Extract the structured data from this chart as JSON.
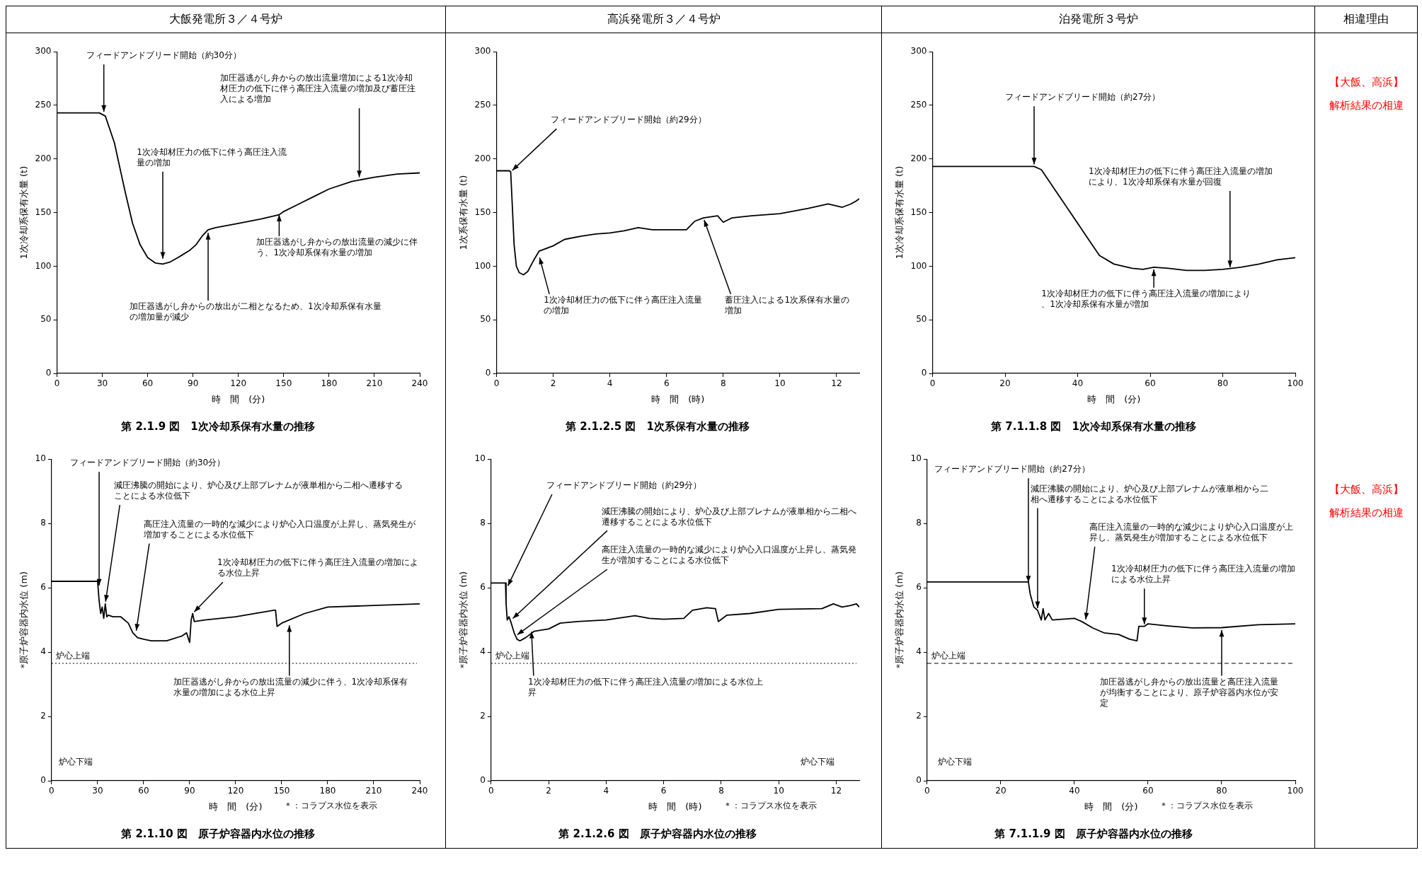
{
  "chart_data": [
    {
      "type": "other",
      "annotations": [
        "大飯発電所３／４号炉",
        "高浜発電所３／４号炉",
        "泊発電所３号炉",
        "相違理由"
      ]
    },
    {
      "type": "line",
      "title": "第 2.1.9 図　1次冷却系保有水量の推移",
      "xlabel": "時　間　(分)",
      "ylabel": "1次冷却系保有水量 (t)",
      "color": "#000000",
      "x": [
        0,
        28,
        32,
        38,
        45,
        50,
        55,
        60,
        65,
        70,
        75,
        80,
        88,
        92,
        96,
        100,
        105,
        120,
        135,
        147,
        150,
        160,
        170,
        180,
        195,
        210,
        225,
        240
      ],
      "values": [
        243,
        243,
        240,
        215,
        170,
        140,
        120,
        108,
        103,
        102,
        104,
        108,
        115,
        120,
        128,
        134,
        136,
        140,
        144,
        148,
        151,
        158,
        165,
        172,
        179,
        183,
        186,
        187
      ],
      "xlim": [
        0,
        240
      ],
      "xticks": [
        0,
        30,
        60,
        90,
        120,
        150,
        180,
        210,
        240
      ],
      "ylim": [
        0,
        300
      ],
      "yticks": [
        0,
        50,
        100,
        150,
        200,
        250,
        300
      ],
      "annotations": [
        {
          "text": "フィードアンドブリード開始（約30分）",
          "x": 31,
          "y": 242
        },
        {
          "text": "加圧器逃がし弁からの放出流量増加による1次冷却材圧力の低下に伴う高圧注入流量の増加及び蓄圧注入による増加",
          "x": 200,
          "y": 181
        },
        {
          "text": "1次冷却材圧力の低下に伴う高圧注入流量の増加",
          "x": 70,
          "y": 105
        },
        {
          "text": "加圧器逃がし弁からの放出流量の減少に伴う、1次冷却系保有水量の増加",
          "x": 147,
          "y": 150
        },
        {
          "text": "加圧器逃がし弁からの放出が二相となるため、1次冷却系保有水量の増加量が減少",
          "x": 100,
          "y": 133
        }
      ]
    },
    {
      "type": "line",
      "title": "第 2.1.2.5 図　1次系保有水量の推移",
      "xlabel": "時　間　(時)",
      "ylabel": "1次系保有水量 (t)",
      "color": "#000000",
      "x": [
        0,
        0.45,
        0.5,
        0.55,
        0.62,
        0.7,
        0.8,
        0.95,
        1.1,
        1.3,
        1.5,
        1.8,
        2,
        2.4,
        3,
        3.5,
        4,
        4.5,
        5,
        5.5,
        6,
        6.7,
        7,
        7.3,
        7.8,
        8,
        8.3,
        9,
        10,
        11,
        11.7,
        12.2,
        12.5,
        12.7,
        12.8
      ],
      "values": [
        189,
        189,
        188,
        160,
        120,
        100,
        94,
        92,
        95,
        105,
        114,
        117,
        119,
        125,
        128,
        130,
        131,
        133,
        136,
        134,
        134,
        134,
        142,
        145,
        147,
        141,
        145,
        147,
        149,
        154,
        158,
        155,
        158,
        161,
        163
      ],
      "xlim": [
        0,
        12.8
      ],
      "xticks": [
        0,
        2,
        4,
        6,
        8,
        10,
        12
      ],
      "ylim": [
        0,
        300
      ],
      "yticks": [
        0,
        50,
        100,
        150,
        200,
        250,
        300
      ],
      "annotations": [
        {
          "text": "フィードアンドブリード開始（約29分）",
          "x": 0.5,
          "y": 188
        },
        {
          "text": "1次冷却材圧力の低下に伴う高圧注入流量の増加",
          "x": 1.5,
          "y": 110
        },
        {
          "text": "蓄圧注入による1次系保有水量の増加",
          "x": 7.3,
          "y": 145
        }
      ]
    },
    {
      "type": "line",
      "title": "第 7.1.1.8 図　1次冷却系保有水量の推移",
      "xlabel": "時　間　(分)",
      "ylabel": "1次冷却系保有水量 (t)",
      "color": "#000000",
      "x": [
        0,
        28,
        30,
        33,
        37,
        42,
        46,
        50,
        55,
        58,
        61,
        65,
        70,
        75,
        80,
        85,
        90,
        95,
        100
      ],
      "values": [
        193,
        193,
        190,
        175,
        155,
        130,
        110,
        102,
        98,
        97,
        99,
        98,
        96,
        96,
        97,
        99,
        102,
        106,
        108
      ],
      "xlim": [
        0,
        100
      ],
      "xticks": [
        0,
        20,
        40,
        60,
        80,
        100
      ],
      "ylim": [
        0,
        300
      ],
      "yticks": [
        0,
        50,
        100,
        150,
        200,
        250,
        300
      ],
      "annotations": [
        {
          "text": "フィードアンドブリード開始（約27分）",
          "x": 28,
          "y": 193
        },
        {
          "text": "1次冷却材圧力の低下に伴う高圧注入流量の増加により、1次冷却系保有水量が回復",
          "x": 82,
          "y": 97
        },
        {
          "text": "1次冷却材圧力の低下に伴う高圧注入流量の増加により、1次冷却系保有水量が増加",
          "x": 61,
          "y": 99
        }
      ]
    },
    {
      "type": "other",
      "color": "#ff0000",
      "annotations": [
        "【大飯、高浜】",
        "解析結果の相違"
      ]
    },
    {
      "type": "line",
      "title": "第 2.1.10 図　原子炉容器内水位の推移",
      "xlabel": "時　間　(分)",
      "ylabel": "*原子炉容器内水位 (m)",
      "color": "#000000",
      "x": [
        0,
        30,
        31,
        32,
        33,
        34,
        35,
        36,
        37,
        40,
        45,
        50,
        53,
        56,
        60,
        65,
        75,
        85,
        88,
        90,
        91,
        92,
        93,
        100,
        120,
        145,
        146,
        147,
        150,
        165,
        180,
        210,
        240
      ],
      "values": [
        6.2,
        6.2,
        5.6,
        5.2,
        5.4,
        5.05,
        5.5,
        5.1,
        5.15,
        5.1,
        5.1,
        4.9,
        4.6,
        4.45,
        4.4,
        4.35,
        4.35,
        4.5,
        4.6,
        4.3,
        5.0,
        5.2,
        4.95,
        5.0,
        5.1,
        5.3,
        5.3,
        4.8,
        4.9,
        5.2,
        5.4,
        5.45,
        5.5
      ],
      "xlim": [
        0,
        240
      ],
      "xticks": [
        0,
        30,
        60,
        90,
        120,
        150,
        180,
        210,
        240
      ],
      "ylim": [
        0,
        10
      ],
      "yticks": [
        0,
        2,
        4,
        6,
        8,
        10
      ],
      "ref_lines": [
        {
          "axis": "y",
          "value": 3.65,
          "label": "炉心上端",
          "line_style": "dotted",
          "color": "#000000"
        }
      ],
      "annotations": [
        {
          "text": "フィードアンドブリード開始（約30分）",
          "x": 31,
          "y": 6.0
        },
        {
          "text": "減圧沸騰の開始により、炉心及び上部プレナムが液単相から二相へ遷移することによる水位低下",
          "x": 35,
          "y": 5.5
        },
        {
          "text": "高圧注入流量の一時的な減少により炉心入口温度が上昇し、蒸気発生が増加することによる水位低下",
          "x": 55,
          "y": 4.6
        },
        {
          "text": "1次冷却材圧力の低下に伴う高圧注入流量の増加による水位上昇",
          "x": 92,
          "y": 5.2
        },
        {
          "text": "加圧器逃がし弁からの放出流量の減少に伴う、1次冷却系保有水量の増加による水位上昇",
          "x": 155,
          "y": 4.9
        },
        "炉心下端",
        "＊：コラプス水位を表示"
      ]
    },
    {
      "type": "line",
      "title": "第 2.1.2.6 図　原子炉容器内水位の推移",
      "xlabel": "時　間　(時)",
      "ylabel": "*原子炉容器内水位 (m)",
      "color": "#000000",
      "x": [
        0,
        0.5,
        0.52,
        0.56,
        0.62,
        0.7,
        0.8,
        0.9,
        1,
        1.2,
        1.5,
        2,
        2.4,
        3,
        4,
        5,
        5.5,
        6,
        6.7,
        7,
        7.5,
        7.8,
        7.9,
        8.2,
        9,
        10,
        11.5,
        11.9,
        12.2,
        12.5,
        12.7,
        12.8
      ],
      "values": [
        6.15,
        6.15,
        5.5,
        5,
        5.1,
        4.9,
        4.6,
        4.4,
        4.35,
        4.45,
        4.65,
        4.72,
        4.9,
        4.95,
        5,
        5.13,
        5.05,
        5.02,
        5.05,
        5.3,
        5.38,
        5.35,
        4.95,
        5.15,
        5.2,
        5.33,
        5.35,
        5.5,
        5.4,
        5.45,
        5.5,
        5.4
      ],
      "xlim": [
        0,
        12.8
      ],
      "xticks": [
        0,
        2,
        4,
        6,
        8,
        10,
        12
      ],
      "ylim": [
        0,
        10
      ],
      "yticks": [
        0,
        2,
        4,
        6,
        8,
        10
      ],
      "ref_lines": [
        {
          "axis": "y",
          "value": 3.65,
          "label": "炉心上端",
          "line_style": "dotted",
          "color": "#000000"
        }
      ],
      "annotations": [
        {
          "text": "フィードアンドブリード開始（約29分）",
          "x": 0.55,
          "y": 6.0
        },
        {
          "text": "減圧沸騰の開始により、炉心及び上部プレナムが液単相から二相へ遷移することによる水位低下",
          "x": 0.7,
          "y": 5.0
        },
        {
          "text": "高圧注入流量の一時的な減少により炉心入口温度が上昇し、蒸気発生が増加することによる水位低下",
          "x": 0.85,
          "y": 4.5
        },
        {
          "text": "1次冷却材圧力の低下に伴う高圧注入流量の増加による水位上昇",
          "x": 1.4,
          "y": 4.7
        },
        "炉心下端",
        "＊：コラプス水位を表示"
      ]
    },
    {
      "type": "line",
      "title": "第 7.1.1.9 図　原子炉容器内水位の推移",
      "xlabel": "時　間　(分)",
      "ylabel": "*原子炉容器内水位 (m)",
      "color": "#000000",
      "x": [
        0,
        27.5,
        28,
        29,
        30,
        31,
        31.5,
        32,
        33,
        34,
        40,
        42,
        45,
        48,
        52,
        55,
        57,
        57.5,
        59,
        60,
        65,
        72,
        80,
        90,
        100
      ],
      "values": [
        6.18,
        6.18,
        5.8,
        5.4,
        5.3,
        5,
        5.35,
        5,
        5.2,
        5,
        5.05,
        4.95,
        4.75,
        4.6,
        4.55,
        4.4,
        4.35,
        4.8,
        4.8,
        4.88,
        4.82,
        4.75,
        4.76,
        4.85,
        4.88
      ],
      "xlim": [
        0,
        100
      ],
      "xticks": [
        0,
        20,
        40,
        60,
        80,
        100
      ],
      "ylim": [
        0,
        10
      ],
      "yticks": [
        0,
        2,
        4,
        6,
        8,
        10
      ],
      "ref_lines": [
        {
          "axis": "y",
          "value": 3.65,
          "label": "炉心上端",
          "line_style": "dashed",
          "color": "#000000"
        }
      ],
      "annotations": [
        {
          "text": "フィードアンドブリード開始（約27分）",
          "x": 27.5,
          "y": 6.1
        },
        {
          "text": "減圧沸騰の開始により、炉心及び上部プレナムが液単相から二相へ遷移することによる水位低下",
          "x": 30,
          "y": 5.3
        },
        {
          "text": "高圧注入流量の一時的な減少により炉心入口温度が上昇し、蒸気発生が増加することによる水位低下",
          "x": 43,
          "y": 4.95
        },
        {
          "text": "1次冷却材圧力の低下に伴う高圧注入流量の増加による水位上昇",
          "x": 59,
          "y": 4.8
        },
        {
          "text": "加圧器逃がし弁からの放出流量と高圧注入流量が均衡することにより、原子炉容器内水位が安定",
          "x": 80,
          "y": 4.75
        },
        "炉心下端",
        "＊：コラプス水位を表示"
      ]
    },
    {
      "type": "other",
      "color": "#ff0000",
      "annotations": [
        "【大飯、高浜】",
        "解析結果の相違"
      ]
    }
  ]
}
